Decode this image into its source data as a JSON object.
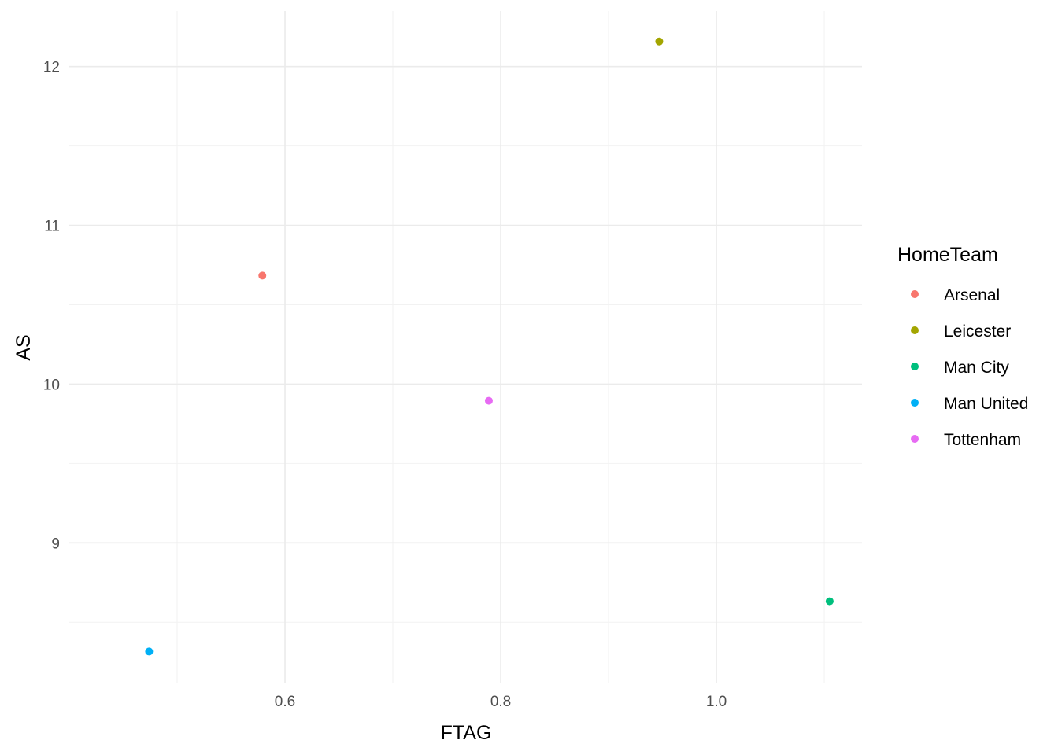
{
  "chart_data": {
    "type": "scatter",
    "xlabel": "FTAG",
    "ylabel": "AS",
    "xlim": [
      0.4,
      1.135
    ],
    "ylim": [
      8.12,
      12.35
    ],
    "x_ticks": [
      0.6,
      0.8,
      1.0
    ],
    "x_tick_labels": [
      "0.6",
      "0.8",
      "1.0"
    ],
    "y_ticks": [
      9,
      10,
      11,
      12
    ],
    "y_tick_labels": [
      "9",
      "10",
      "11",
      "12"
    ],
    "grid": true,
    "legend": {
      "title": "HomeTeam",
      "placement": "right"
    },
    "series": [
      {
        "name": "Arsenal",
        "color": "#F8766D",
        "x": [
          0.579
        ],
        "y": [
          10.684
        ]
      },
      {
        "name": "Leicester",
        "color": "#A3A500",
        "x": [
          0.947
        ],
        "y": [
          12.158
        ]
      },
      {
        "name": "Man City",
        "color": "#00BF7D",
        "x": [
          1.105
        ],
        "y": [
          8.632
        ]
      },
      {
        "name": "Man United",
        "color": "#00B0F6",
        "x": [
          0.474
        ],
        "y": [
          8.316
        ]
      },
      {
        "name": "Tottenham",
        "color": "#E76BF3",
        "x": [
          0.789
        ],
        "y": [
          9.895
        ]
      }
    ]
  }
}
